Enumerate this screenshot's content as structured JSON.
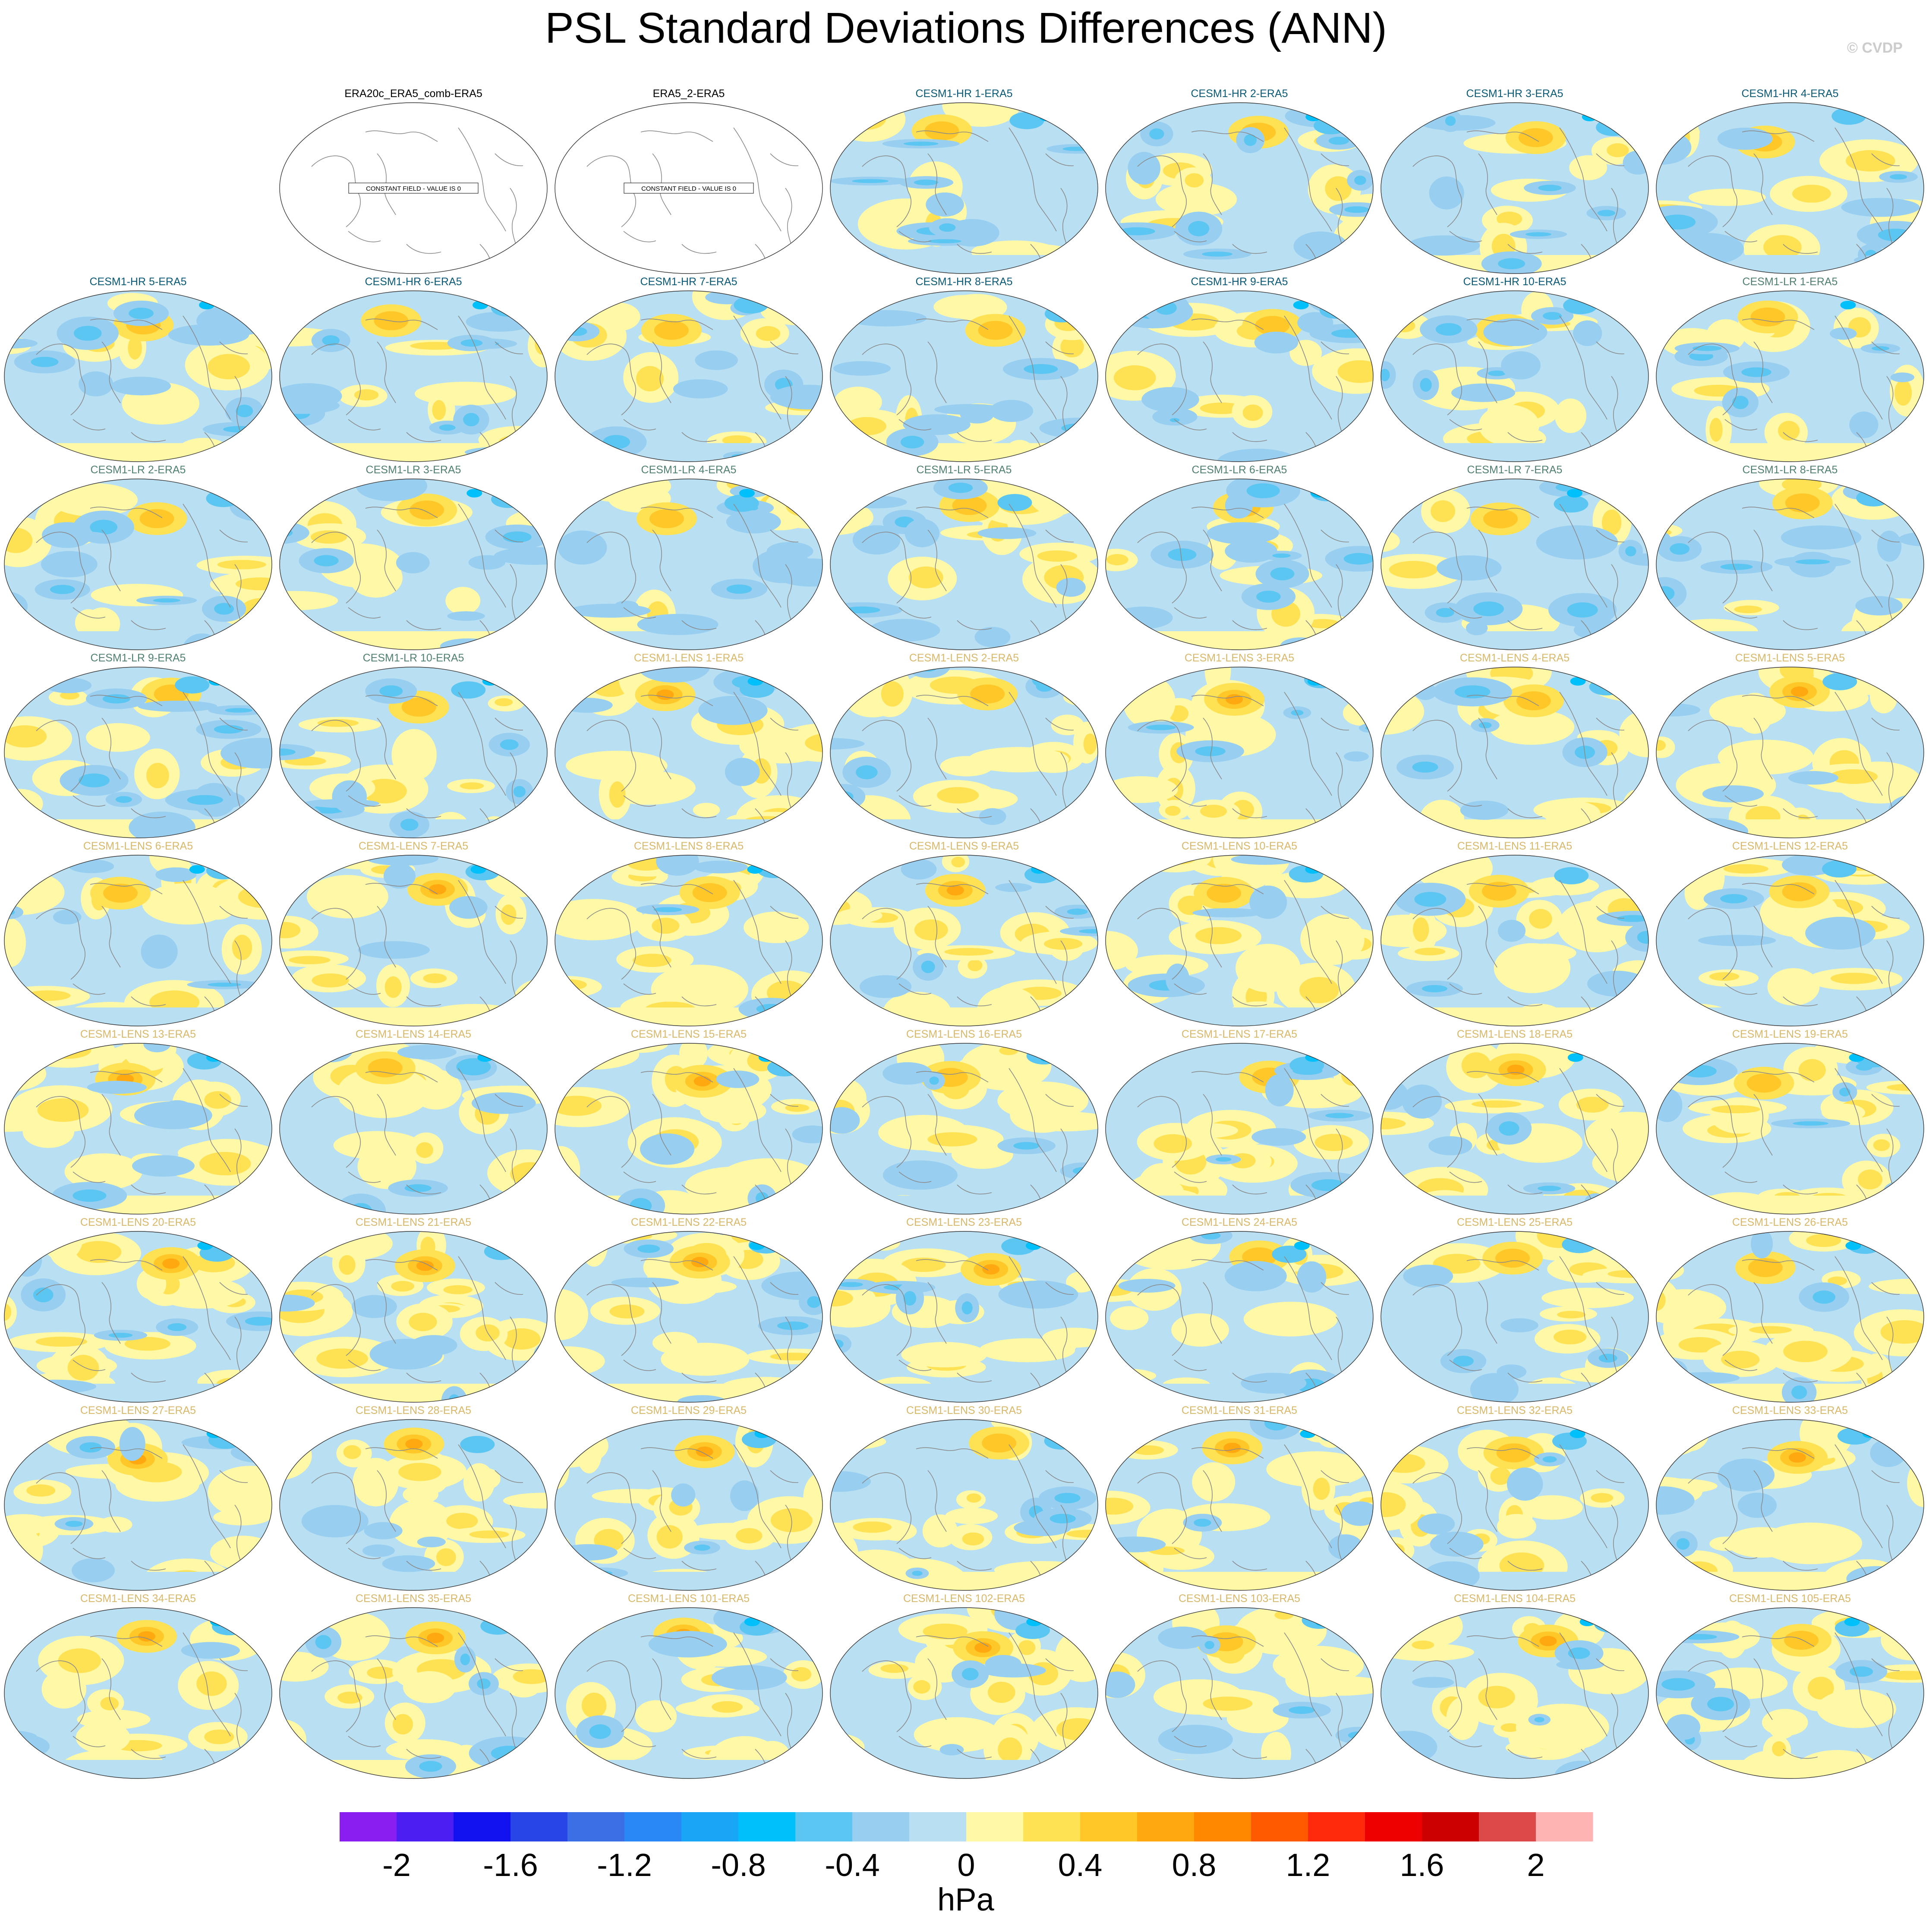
{
  "title": "PSL Standard Deviations Differences (ANN)",
  "watermark": "© CVDP",
  "colors": {
    "title_default": "#000000",
    "title_cesm1_hr": "#0a5a78",
    "title_cesm1_lr": "#4f8070",
    "title_cesm1_lens": "#d9b86a",
    "coastline": "#8a8a8a",
    "ocean_base": "#b8dff2",
    "constant_field_fill": "#ffffff"
  },
  "panels": [
    {
      "title": "ERA20c_ERA5_comb-ERA5",
      "group": "obs",
      "constant": true,
      "note": "CONSTANT FIELD - VALUE IS 0"
    },
    {
      "title": "ERA5_2-ERA5",
      "group": "obs",
      "constant": true,
      "note": "CONSTANT FIELD - VALUE IS 0"
    },
    {
      "title": "CESM1-HR 1-ERA5",
      "group": "hr"
    },
    {
      "title": "CESM1-HR 2-ERA5",
      "group": "hr"
    },
    {
      "title": "CESM1-HR 3-ERA5",
      "group": "hr"
    },
    {
      "title": "CESM1-HR 4-ERA5",
      "group": "hr"
    },
    {
      "title": "CESM1-HR 5-ERA5",
      "group": "hr"
    },
    {
      "title": "CESM1-HR 6-ERA5",
      "group": "hr"
    },
    {
      "title": "CESM1-HR 7-ERA5",
      "group": "hr"
    },
    {
      "title": "CESM1-HR 8-ERA5",
      "group": "hr"
    },
    {
      "title": "CESM1-HR 9-ERA5",
      "group": "hr"
    },
    {
      "title": "CESM1-HR 10-ERA5",
      "group": "hr"
    },
    {
      "title": "CESM1-LR 1-ERA5",
      "group": "lr"
    },
    {
      "title": "CESM1-LR 2-ERA5",
      "group": "lr"
    },
    {
      "title": "CESM1-LR 3-ERA5",
      "group": "lr"
    },
    {
      "title": "CESM1-LR 4-ERA5",
      "group": "lr"
    },
    {
      "title": "CESM1-LR 5-ERA5",
      "group": "lr"
    },
    {
      "title": "CESM1-LR 6-ERA5",
      "group": "lr"
    },
    {
      "title": "CESM1-LR 7-ERA5",
      "group": "lr"
    },
    {
      "title": "CESM1-LR 8-ERA5",
      "group": "lr"
    },
    {
      "title": "CESM1-LR 9-ERA5",
      "group": "lr"
    },
    {
      "title": "CESM1-LR 10-ERA5",
      "group": "lr"
    },
    {
      "title": "CESM1-LENS 1-ERA5",
      "group": "lens"
    },
    {
      "title": "CESM1-LENS 2-ERA5",
      "group": "lens"
    },
    {
      "title": "CESM1-LENS 3-ERA5",
      "group": "lens"
    },
    {
      "title": "CESM1-LENS 4-ERA5",
      "group": "lens"
    },
    {
      "title": "CESM1-LENS 5-ERA5",
      "group": "lens"
    },
    {
      "title": "CESM1-LENS 6-ERA5",
      "group": "lens"
    },
    {
      "title": "CESM1-LENS 7-ERA5",
      "group": "lens"
    },
    {
      "title": "CESM1-LENS 8-ERA5",
      "group": "lens"
    },
    {
      "title": "CESM1-LENS 9-ERA5",
      "group": "lens"
    },
    {
      "title": "CESM1-LENS 10-ERA5",
      "group": "lens"
    },
    {
      "title": "CESM1-LENS 11-ERA5",
      "group": "lens"
    },
    {
      "title": "CESM1-LENS 12-ERA5",
      "group": "lens"
    },
    {
      "title": "CESM1-LENS 13-ERA5",
      "group": "lens"
    },
    {
      "title": "CESM1-LENS 14-ERA5",
      "group": "lens"
    },
    {
      "title": "CESM1-LENS 15-ERA5",
      "group": "lens"
    },
    {
      "title": "CESM1-LENS 16-ERA5",
      "group": "lens"
    },
    {
      "title": "CESM1-LENS 17-ERA5",
      "group": "lens"
    },
    {
      "title": "CESM1-LENS 18-ERA5",
      "group": "lens"
    },
    {
      "title": "CESM1-LENS 19-ERA5",
      "group": "lens"
    },
    {
      "title": "CESM1-LENS 20-ERA5",
      "group": "lens"
    },
    {
      "title": "CESM1-LENS 21-ERA5",
      "group": "lens"
    },
    {
      "title": "CESM1-LENS 22-ERA5",
      "group": "lens"
    },
    {
      "title": "CESM1-LENS 23-ERA5",
      "group": "lens"
    },
    {
      "title": "CESM1-LENS 24-ERA5",
      "group": "lens"
    },
    {
      "title": "CESM1-LENS 25-ERA5",
      "group": "lens"
    },
    {
      "title": "CESM1-LENS 26-ERA5",
      "group": "lens"
    },
    {
      "title": "CESM1-LENS 27-ERA5",
      "group": "lens"
    },
    {
      "title": "CESM1-LENS 28-ERA5",
      "group": "lens"
    },
    {
      "title": "CESM1-LENS 29-ERA5",
      "group": "lens"
    },
    {
      "title": "CESM1-LENS 30-ERA5",
      "group": "lens"
    },
    {
      "title": "CESM1-LENS 31-ERA5",
      "group": "lens"
    },
    {
      "title": "CESM1-LENS 32-ERA5",
      "group": "lens"
    },
    {
      "title": "CESM1-LENS 33-ERA5",
      "group": "lens"
    },
    {
      "title": "CESM1-LENS 34-ERA5",
      "group": "lens"
    },
    {
      "title": "CESM1-LENS 35-ERA5",
      "group": "lens"
    },
    {
      "title": "CESM1-LENS 101-ERA5",
      "group": "lens"
    },
    {
      "title": "CESM1-LENS 102-ERA5",
      "group": "lens"
    },
    {
      "title": "CESM1-LENS 103-ERA5",
      "group": "lens"
    },
    {
      "title": "CESM1-LENS 104-ERA5",
      "group": "lens"
    },
    {
      "title": "CESM1-LENS 105-ERA5",
      "group": "lens"
    }
  ],
  "colorbar": {
    "units": "hPa",
    "tick_labels": [
      "-2",
      "-1.6",
      "-1.2",
      "-0.8",
      "-0.4",
      "0",
      "0.4",
      "0.8",
      "1.2",
      "1.6",
      "2"
    ],
    "levels": [
      -2,
      -1.8,
      -1.6,
      -1.4,
      -1.2,
      -1,
      -0.8,
      -0.6,
      -0.4,
      -0.2,
      0,
      0.2,
      0.4,
      0.6,
      0.8,
      1,
      1.2,
      1.4,
      1.6,
      1.8,
      2
    ],
    "colors": [
      "#8a1ef0",
      "#4c1ef2",
      "#1212f0",
      "#2846e6",
      "#3c6ee6",
      "#2a88f6",
      "#1aa6f6",
      "#00c0fc",
      "#5cc6f2",
      "#98cef0",
      "#b8dff2",
      "#fff8a6",
      "#ffe254",
      "#ffc828",
      "#ffa810",
      "#ff8800",
      "#ff5a00",
      "#ff2a0c",
      "#ee0000",
      "#cc0000",
      "#dd4848",
      "#ffb4b4"
    ]
  }
}
